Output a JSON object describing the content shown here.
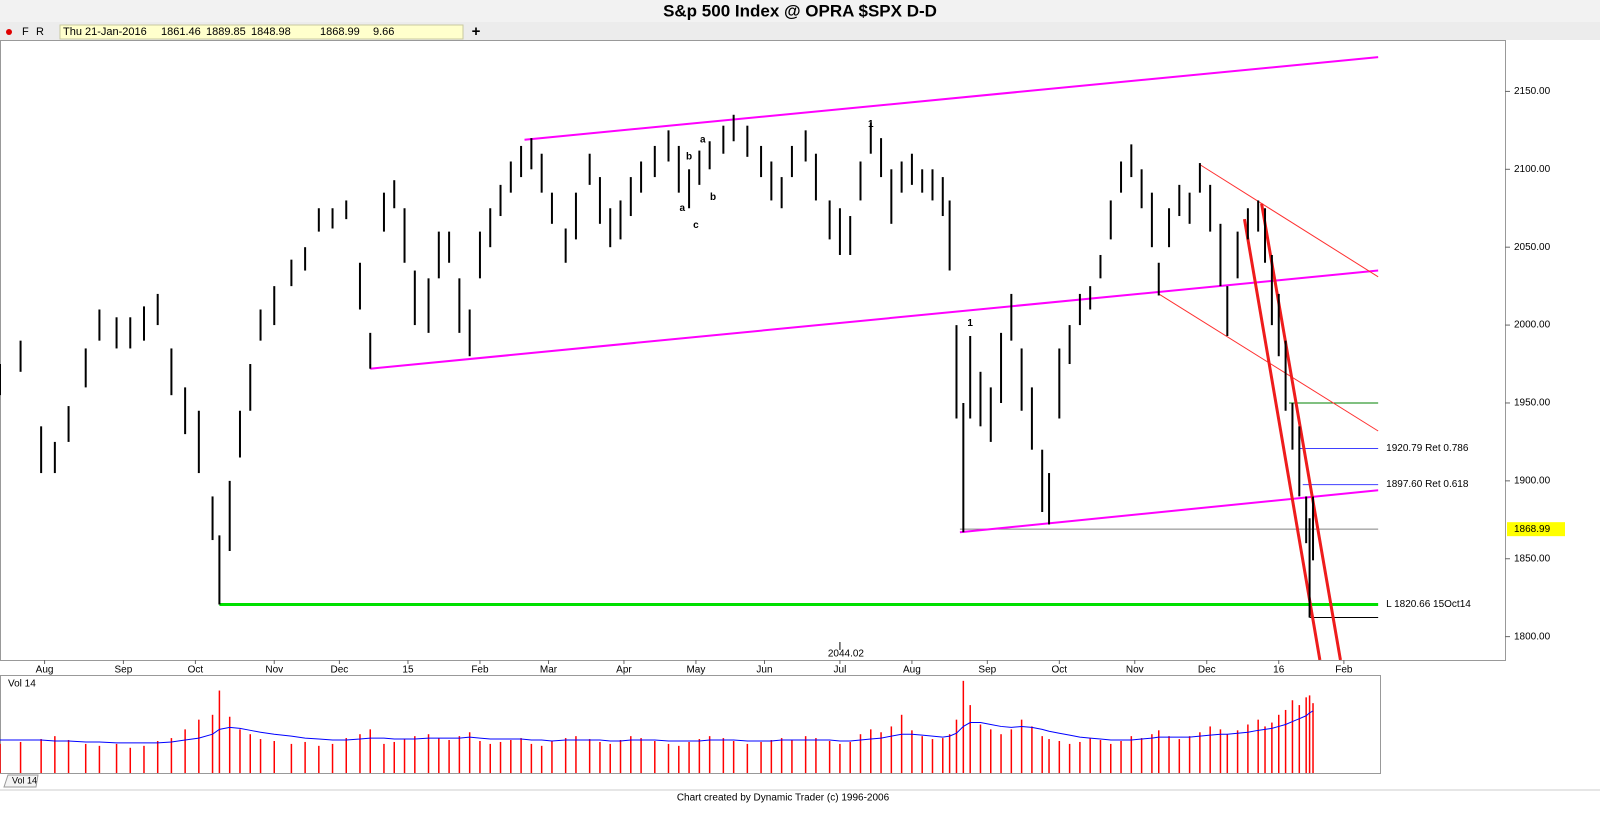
{
  "title": "S&p 500 Index @ OPRA $SPX   D-D",
  "toolbar": {
    "buttons": [
      "F",
      "R"
    ],
    "add": "+"
  },
  "footer": "Chart created by Dynamic Trader  (c) 1996-2006",
  "chart_data": {
    "type": "ohlc",
    "header": {
      "date": "Thu 21-Jan-2016",
      "open": 1861.46,
      "high": 1889.85,
      "low": 1848.98,
      "close": 1868.99,
      "change": 9.66
    },
    "color": "#000000",
    "x": [
      0,
      6,
      12,
      16,
      20,
      25,
      29,
      34,
      38,
      42,
      46,
      50,
      54,
      58,
      62,
      64,
      67,
      70,
      73,
      76,
      80,
      85,
      89,
      93,
      97,
      101,
      105,
      108,
      112,
      115,
      118,
      121,
      125,
      128,
      131,
      134,
      137,
      140,
      143,
      146,
      149,
      152,
      155,
      158,
      161,
      165,
      168,
      172,
      175,
      178,
      181,
      184,
      187,
      191,
      195,
      198,
      201,
      204,
      207,
      211,
      214,
      218,
      222,
      225,
      228,
      231,
      235,
      238,
      242,
      245,
      248,
      251,
      254,
      257,
      260,
      263,
      266,
      269,
      272,
      275,
      277,
      279,
      281,
      283,
      286,
      289,
      292,
      295,
      298,
      301,
      304,
      306,
      309,
      312,
      315,
      318,
      321,
      324,
      327,
      330,
      333,
      336,
      338,
      341,
      344,
      347,
      350,
      353,
      356,
      358,
      361,
      364,
      367,
      369,
      371,
      373,
      375,
      377,
      379,
      381,
      382,
      383
    ],
    "high": [
      1975,
      1990,
      1935,
      1925,
      1948,
      1985,
      2010,
      2005,
      2005,
      2012,
      2020,
      1985,
      1960,
      1945,
      1890,
      1865,
      1900,
      1945,
      1975,
      2010,
      2025,
      2042,
      2050,
      2075,
      2075,
      2080,
      2040,
      1995,
      2085,
      2093,
      2075,
      2035,
      2030,
      2060,
      2060,
      2030,
      2010,
      2060,
      2075,
      2090,
      2105,
      2115,
      2120,
      2110,
      2085,
      2062,
      2085,
      2110,
      2095,
      2075,
      2080,
      2095,
      2105,
      2115,
      2125,
      2115,
      2100,
      2112,
      2118,
      2128,
      2135,
      2128,
      2115,
      2105,
      2095,
      2115,
      2125,
      2110,
      2080,
      2075,
      2070,
      2105,
      2130,
      2120,
      2100,
      2105,
      2110,
      2100,
      2100,
      2095,
      2080,
      2000,
      1950,
      1993,
      1970,
      1960,
      1995,
      2020,
      1985,
      1960,
      1920,
      1905,
      1985,
      2000,
      2020,
      2025,
      2045,
      2080,
      2105,
      2116,
      2100,
      2085,
      2040,
      2075,
      2090,
      2085,
      2104,
      2090,
      2065,
      2025,
      2060,
      2075,
      2080,
      2075,
      2045,
      2020,
      1990,
      1950,
      1935,
      1890,
      1876,
      1889.85
    ],
    "low": [
      1955,
      1970,
      1905,
      1905,
      1925,
      1960,
      1990,
      1985,
      1985,
      1990,
      2000,
      1955,
      1930,
      1905,
      1862,
      1820.66,
      1855,
      1915,
      1945,
      1990,
      2000,
      2025,
      2035,
      2060,
      2062,
      2068,
      2010,
      1972,
      2060,
      2075,
      2040,
      2000,
      1995,
      2030,
      2040,
      1995,
      1980,
      2030,
      2050,
      2070,
      2085,
      2095,
      2100,
      2085,
      2065,
      2040,
      2055,
      2090,
      2065,
      2050,
      2055,
      2070,
      2085,
      2095,
      2105,
      2085,
      2075,
      2090,
      2100,
      2110,
      2118,
      2108,
      2095,
      2080,
      2075,
      2095,
      2105,
      2080,
      2055,
      2045,
      2045,
      2080,
      2110,
      2095,
      2065,
      2085,
      2090,
      2085,
      2080,
      2070,
      2035,
      1940,
      1867,
      1940,
      1935,
      1925,
      1950,
      1990,
      1945,
      1920,
      1880,
      1872,
      1940,
      1975,
      2000,
      2010,
      2030,
      2055,
      2085,
      2095,
      2075,
      2050,
      2019,
      2050,
      2070,
      2065,
      2085,
      2060,
      2025,
      1993,
      2030,
      2055,
      2060,
      2040,
      2000,
      1980,
      1945,
      1920,
      1890,
      1860,
      1812.29,
      1848.98
    ],
    "xlim": [
      0,
      439
    ],
    "xticks": [
      {
        "value": 13,
        "label": "Aug"
      },
      {
        "value": 36,
        "label": "Sep"
      },
      {
        "value": 57,
        "label": "Oct"
      },
      {
        "value": 80,
        "label": "Nov"
      },
      {
        "value": 99,
        "label": "Dec"
      },
      {
        "value": 119,
        "label": "15"
      },
      {
        "value": 140,
        "label": "Feb"
      },
      {
        "value": 160,
        "label": "Mar"
      },
      {
        "value": 182,
        "label": "Apr"
      },
      {
        "value": 203,
        "label": "May"
      },
      {
        "value": 223,
        "label": "Jun"
      },
      {
        "value": 245,
        "label": "Jul"
      },
      {
        "value": 266,
        "label": "Aug"
      },
      {
        "value": 288,
        "label": "Sep"
      },
      {
        "value": 309,
        "label": "Oct"
      },
      {
        "value": 331,
        "label": "Nov"
      },
      {
        "value": 352,
        "label": "Dec"
      },
      {
        "value": 373,
        "label": "16"
      },
      {
        "value": 392,
        "label": "Feb"
      }
    ],
    "ylim": [
      1785,
      2183
    ],
    "yticks": [
      {
        "value": 1800,
        "label": "1800.00"
      },
      {
        "value": 1850,
        "label": "1850.00"
      },
      {
        "value": 1900,
        "label": "1900.00"
      },
      {
        "value": 1950,
        "label": "1950.00"
      },
      {
        "value": 2000,
        "label": "2000.00"
      },
      {
        "value": 2050,
        "label": "2050.00"
      },
      {
        "value": 2100,
        "label": "2100.00"
      },
      {
        "value": 2150,
        "label": "2150.00"
      }
    ],
    "last_price": 1868.99,
    "last_price_color": "#ffff00",
    "levels": [
      {
        "value": 1820.66,
        "label": "L 1820.66 15Oct14",
        "from": 64,
        "to": 402,
        "color": "#00e000",
        "width": 3
      },
      {
        "value": 1920.79,
        "label": "1920.79 Ret 0.786",
        "from": 379,
        "to": 402,
        "color": "#4040ff",
        "width": 1
      },
      {
        "value": 1897.6,
        "label": "1897.60 Ret 0.618",
        "from": 380,
        "to": 402,
        "color": "#4040ff",
        "width": 1
      },
      {
        "value": 1950,
        "from": 376,
        "to": 402,
        "color": "#008000",
        "width": 1
      },
      {
        "value": 1868.99,
        "from": 280,
        "to": 402,
        "color": "#808080",
        "width": 1
      },
      {
        "value": 1812.29,
        "from": 382,
        "to": 402,
        "color": "#000000",
        "width": 1
      }
    ],
    "trendlines": [
      {
        "from": [
          153,
          2119
        ],
        "to": [
          402,
          2172
        ],
        "color": "#ff00ff",
        "width": 2
      },
      {
        "from": [
          108,
          1972
        ],
        "to": [
          402,
          2035
        ],
        "color": "#ff00ff",
        "width": 2
      },
      {
        "from": [
          280,
          1867
        ],
        "to": [
          402,
          1894
        ],
        "color": "#ff00ff",
        "width": 2
      },
      {
        "from": [
          350,
          2103
        ],
        "to": [
          402,
          2031
        ],
        "color": "#ff3030",
        "width": 1
      },
      {
        "from": [
          338,
          2020
        ],
        "to": [
          402,
          1932
        ],
        "color": "#ff3030",
        "width": 1
      },
      {
        "from": [
          368,
          2078
        ],
        "to": [
          391,
          1785
        ],
        "color": "#ee1c1c",
        "width": 3
      },
      {
        "from": [
          363,
          2068
        ],
        "to": [
          385,
          1785
        ],
        "color": "#ee1c1c",
        "width": 3
      }
    ],
    "annotations": [
      {
        "text": "1",
        "x": 283,
        "y": 2001,
        "color": "#008000"
      },
      {
        "text": "1",
        "x": 254,
        "y": 2129,
        "color": "#ff00ff"
      },
      {
        "text": "b",
        "x": 201,
        "y": 2108,
        "color": "#000000"
      },
      {
        "text": "a",
        "x": 205,
        "y": 2119,
        "color": "#000000"
      },
      {
        "text": "a",
        "x": 199,
        "y": 2075,
        "color": "#000000"
      },
      {
        "text": "b",
        "x": 208,
        "y": 2082,
        "color": "#000000"
      },
      {
        "text": "c",
        "x": 203,
        "y": 2064,
        "color": "#000000"
      }
    ],
    "marker": {
      "text": "2044.02",
      "x": 245
    },
    "volume": {
      "label": "Vol 14",
      "tab": "Vol 14",
      "color": "#ff0000",
      "ma_color": "#0000ff",
      "vlim": [
        0,
        100
      ],
      "values": [
        30,
        32,
        35,
        38,
        34,
        30,
        28,
        30,
        26,
        28,
        33,
        36,
        45,
        55,
        60,
        85,
        58,
        45,
        40,
        35,
        33,
        30,
        32,
        28,
        30,
        36,
        40,
        45,
        30,
        32,
        35,
        38,
        40,
        36,
        34,
        38,
        42,
        33,
        30,
        32,
        34,
        36,
        30,
        28,
        33,
        36,
        38,
        35,
        32,
        30,
        34,
        38,
        36,
        33,
        30,
        28,
        32,
        35,
        38,
        36,
        33,
        30,
        32,
        34,
        36,
        34,
        38,
        36,
        33,
        30,
        32,
        40,
        45,
        42,
        48,
        60,
        44,
        38,
        35,
        36,
        40,
        55,
        95,
        70,
        50,
        45,
        40,
        45,
        55,
        48,
        38,
        35,
        33,
        30,
        32,
        36,
        34,
        30,
        33,
        38,
        36,
        40,
        44,
        38,
        35,
        38,
        42,
        48,
        45,
        40,
        44,
        50,
        55,
        48,
        52,
        60,
        65,
        75,
        70,
        78,
        80,
        72
      ],
      "ma": [
        34,
        34,
        34,
        33,
        33,
        32,
        32,
        31,
        31,
        31,
        31,
        32,
        34,
        36,
        40,
        45,
        47,
        46,
        44,
        42,
        40,
        38,
        36,
        35,
        34,
        34,
        35,
        36,
        36,
        35,
        35,
        35,
        36,
        36,
        36,
        36,
        37,
        36,
        35,
        35,
        35,
        35,
        34,
        34,
        33,
        34,
        34,
        34,
        34,
        33,
        33,
        34,
        34,
        34,
        33,
        33,
        33,
        33,
        34,
        34,
        34,
        33,
        33,
        33,
        34,
        34,
        34,
        34,
        34,
        33,
        33,
        34,
        35,
        36,
        38,
        40,
        40,
        39,
        38,
        37,
        38,
        41,
        48,
        52,
        52,
        50,
        48,
        47,
        48,
        47,
        45,
        43,
        41,
        39,
        37,
        36,
        35,
        34,
        34,
        34,
        35,
        36,
        37,
        37,
        37,
        37,
        38,
        39,
        40,
        40,
        41,
        42,
        44,
        45,
        46,
        48,
        50,
        53,
        56,
        59,
        62,
        64
      ]
    }
  }
}
